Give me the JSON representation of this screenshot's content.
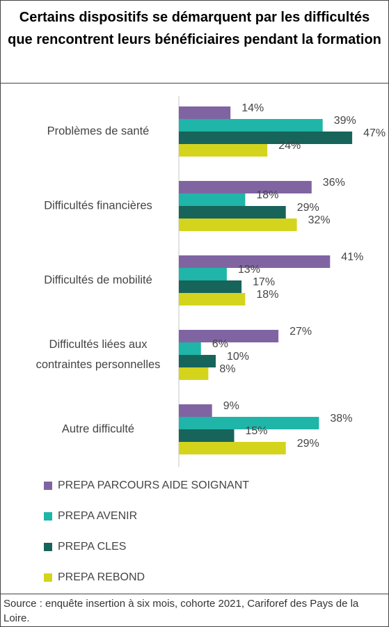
{
  "chart_data": {
    "type": "hbar",
    "title": "Certains dispositifs se démarquent par les difficultés que rencontrent leurs bénéficiaires pendant la formation",
    "categories": [
      "Problèmes de santé",
      "Difficultés financières",
      "Difficultés de mobilité",
      "Difficultés liées aux contraintes personnelles",
      "Autre difficulté"
    ],
    "series": [
      {
        "name": "PREPA PARCOURS AIDE SOIGNANT",
        "color": "#8064a2",
        "values": [
          14,
          36,
          41,
          27,
          9
        ],
        "value_labels": [
          "14%",
          "36%",
          "41%",
          "27%",
          "9%"
        ]
      },
      {
        "name": "PREPA AVENIR",
        "color": "#1fb5a8",
        "values": [
          39,
          18,
          13,
          6,
          38
        ],
        "value_labels": [
          "39%",
          "18%",
          "13%",
          "6%",
          "38%"
        ]
      },
      {
        "name": "PREPA CLES",
        "color": "#17645a",
        "values": [
          47,
          29,
          17,
          10,
          15
        ],
        "value_labels": [
          "47%",
          "29%",
          "17%",
          "10%",
          "15%"
        ]
      },
      {
        "name": "PREPA REBOND",
        "color": "#d4d41c",
        "values": [
          24,
          32,
          18,
          8,
          29
        ],
        "value_labels": [
          "24%",
          "32%",
          "18%",
          "8%",
          "29%"
        ]
      }
    ],
    "xlim": [
      0,
      50
    ],
    "source": "Source : enquête insertion à six mois, cohorte 2021, Cariforef des Pays de la Loire."
  }
}
